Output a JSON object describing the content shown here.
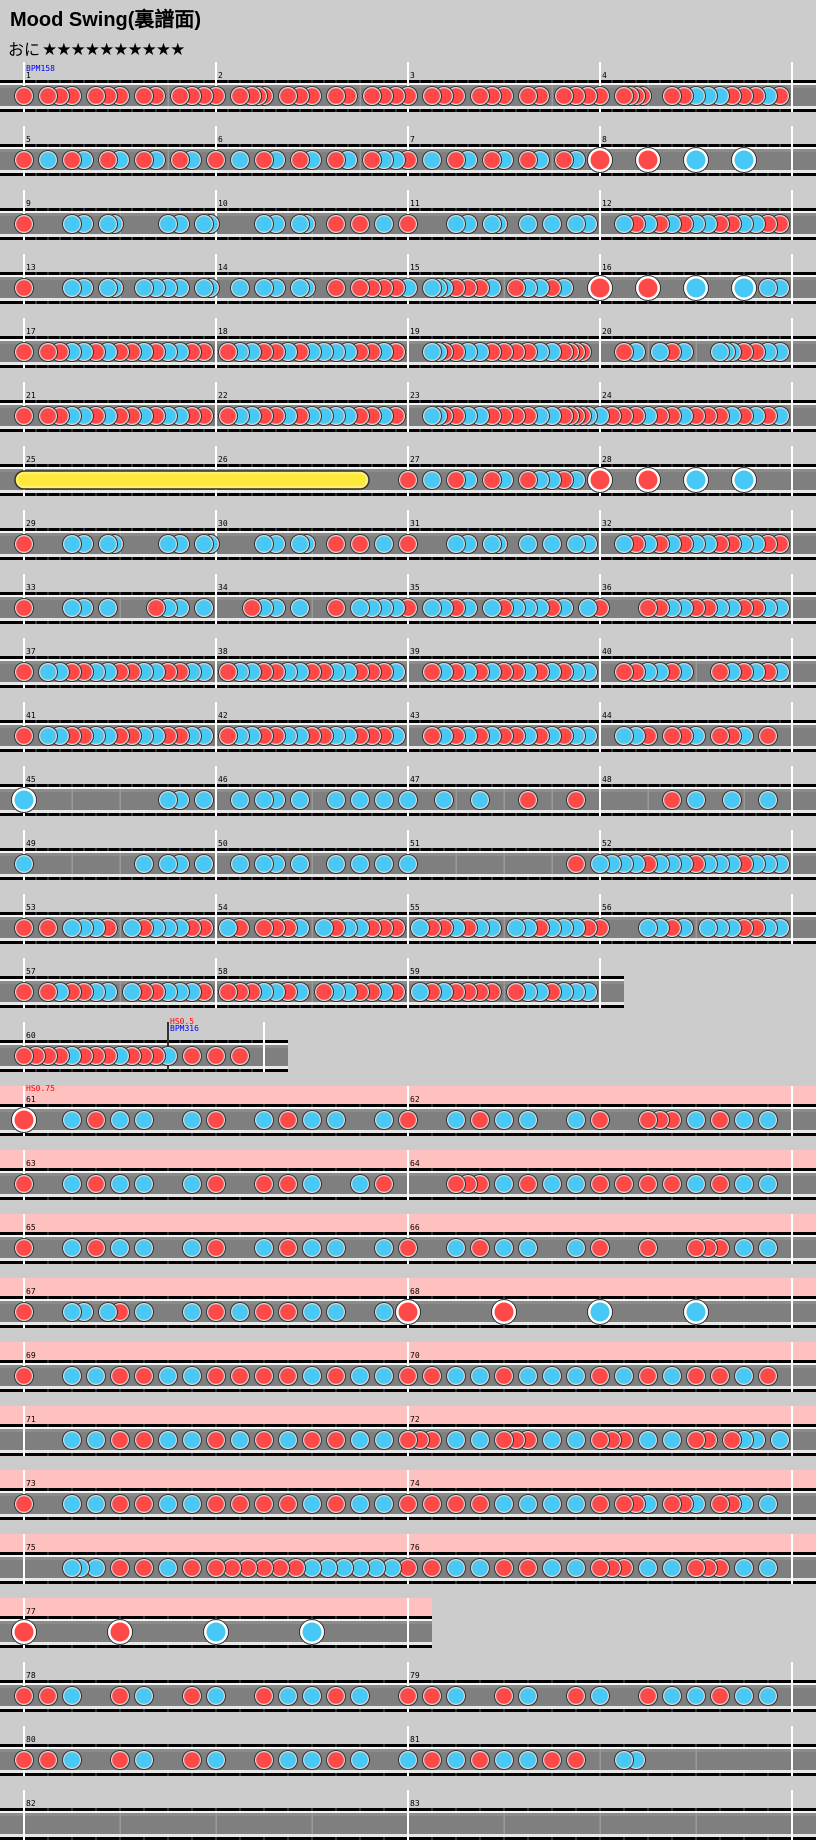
{
  "header": {
    "title": "Mood Swing(裏譜面)",
    "difficulty": "おに",
    "stars": 10,
    "stars_text": "★★★★★★★★★★"
  },
  "colors": {
    "background": "#cccccc",
    "lane": "#7f7f7f",
    "don": "#ff4848",
    "ka": "#48c8f4",
    "drumroll": "#ffe83c",
    "hs_band": "#ffc0c0",
    "bpm_label": "#0000ff",
    "hs_label": "#ff0000"
  },
  "note_legend": {
    "1": "don",
    "2": "ka",
    "3": "big-don",
    "4": "big-ka",
    "5": "drumroll-start",
    "8": "drumroll-end"
  },
  "hs_sections": [
    {
      "from": 61,
      "to": 77,
      "hs": 0.75
    }
  ],
  "events": [
    {
      "measure": 1,
      "sixteenth": 0,
      "bpm": "BPM158"
    },
    {
      "measure": 60,
      "sixteenth": 12,
      "hs": "HS0.5",
      "bpm": "BPM316",
      "marker": true
    },
    {
      "measure": 61,
      "sixteenth": 0,
      "hs": "HS0.75"
    }
  ],
  "rows": [
    [
      1,
      2,
      3,
      4
    ],
    [
      5,
      6,
      7,
      8
    ],
    [
      9,
      10,
      11,
      12
    ],
    [
      13,
      14,
      15,
      16
    ],
    [
      17,
      18,
      19,
      20
    ],
    [
      21,
      22,
      23,
      24
    ],
    [
      25,
      26,
      27,
      28
    ],
    [
      29,
      30,
      31,
      32
    ],
    [
      33,
      34,
      35,
      36
    ],
    [
      37,
      38,
      39,
      40
    ],
    [
      41,
      42,
      43,
      44
    ],
    [
      45,
      46,
      47,
      48
    ],
    [
      49,
      50,
      51,
      52
    ],
    [
      53,
      54,
      55,
      56
    ],
    [
      57,
      58,
      59
    ],
    [
      60
    ],
    [
      61,
      62
    ],
    [
      63,
      64
    ],
    [
      65,
      66
    ],
    [
      67,
      68
    ],
    [
      69,
      70
    ],
    [
      71,
      72
    ],
    [
      73,
      74
    ],
    [
      75,
      76
    ],
    [
      77
    ],
    [
      78,
      79
    ],
    [
      80,
      81
    ],
    [
      82,
      83
    ]
  ],
  "measures": [
    {
      "n": 1,
      "notes": "1011101110110111"
    },
    {
      "n": 2,
      "notes": "10001011100010101000101000101010"
    },
    {
      "n": 3,
      "notes": "1011101110110111"
    },
    {
      "n": 4,
      "notes": "10001111000010102020201010102010"
    },
    {
      "n": 5,
      "notes": "1020120120120120"
    },
    {
      "n": 6,
      "notes": "1020120120120122"
    },
    {
      "n": 7,
      "notes": "1020120120120120"
    },
    {
      "n": 8,
      "notes": "3000300040004000"
    },
    {
      "n": 9,
      "notes": "10000000202000220000000020200022"
    },
    {
      "n": 10,
      "notes": "00000000202000220000100010002000"
    },
    {
      "n": 11,
      "notes": "10000000202000220000200020002020"
    },
    {
      "n": 12,
      "notes": "0021212122112211"
    },
    {
      "n": 13,
      "notes": "10000000202000220000202020200022"
    },
    {
      "n": 14,
      "notes": "00002000202000220000100010101010"
    },
    {
      "n": 15,
      "notes": "20002220101010200010202010200000"
    },
    {
      "n": 16,
      "notes": "3000300040004022"
    },
    {
      "n": 17,
      "notes": "1011221211212211"
    },
    {
      "n": 18,
      "notes": "0122112122221121"
    },
    {
      "n": 19,
      "notes": "00002210102020101010102020111100"
    },
    {
      "n": 20,
      "notes": "00001020002010200000222010102020"
    },
    {
      "n": 21,
      "notes": "1011221211212211"
    },
    {
      "n": 22,
      "notes": "0122112122221121"
    },
    {
      "n": 23,
      "notes": "00002210102020101010102020111120"
    },
    {
      "n": 24,
      "notes": "2111211211121212"
    },
    {
      "n": 25,
      "notes": "5000000000000000"
    },
    {
      "n": 26,
      "notes": "0000000000008000"
    },
    {
      "n": 27,
      "notes": "1020120120122120"
    },
    {
      "n": 28,
      "notes": "3000300040004000"
    },
    {
      "n": 29,
      "notes": "10000000202000220000000020200022"
    },
    {
      "n": 30,
      "notes": "00000000202000220000100010002000"
    },
    {
      "n": 31,
      "notes": "10000000202000220000200020002020"
    },
    {
      "n": 32,
      "notes": "0021212122112211"
    },
    {
      "n": 33,
      "notes": "1000220200012202"
    },
    {
      "n": 34,
      "notes": "0001220200102222"
    },
    {
      "n": 35,
      "notes": "1022120212221202"
    },
    {
      "n": 36,
      "notes": "1000112211221122"
    },
    {
      "n": 37,
      "notes": "1022112211221122"
    },
    {
      "n": 38,
      "notes": "0122112211221112"
    },
    {
      "n": 39,
      "notes": "0012121211212122"
    },
    {
      "n": 40,
      "notes": "0011221200121212"
    },
    {
      "n": 41,
      "notes": "1022112211221122"
    },
    {
      "n": 42,
      "notes": "0122112211221112"
    },
    {
      "n": 43,
      "notes": "0012121211212122"
    },
    {
      "n": 44,
      "notes": "0022101120112010"
    },
    {
      "n": 45,
      "notes": "4000000000002202"
    },
    {
      "n": 46,
      "notes": "0020220200202020"
    },
    {
      "n": 47,
      "notes": "2002002000100010"
    },
    {
      "n": 48,
      "notes": "0000001020020020"
    },
    {
      "n": 49,
      "notes": "2000000000202202"
    },
    {
      "n": 50,
      "notes": "0020220200202020"
    },
    {
      "n": 51,
      "notes": "2000000000000010"
    },
    {
      "n": 52,
      "notes": "2222122212221222"
    },
    {
      "n": 53,
      "notes": "1010222102122211"
    },
    {
      "n": 54,
      "notes": "0210111202122111"
    },
    {
      "n": 55,
      "notes": "0211212202212221"
    },
    {
      "n": 56,
      "notes": "1000221202221122"
    },
    {
      "n": 57,
      "notes": "1012112202112221"
    },
    {
      "n": 58,
      "notes": "0111221201221121"
    },
    {
      "n": 59,
      "notes": "0212111101221222"
    },
    {
      "n": 60,
      "notes": "11112111211120101010",
      "beats": 5
    },
    {
      "n": 61,
      "notes": "3021220210212202"
    },
    {
      "n": 62,
      "notes": "10002010202000201000111020102020"
    },
    {
      "n": 63,
      "notes": "1021220210112021"
    },
    {
      "n": 64,
      "notes": "00001110201020201010101020102020"
    },
    {
      "n": 65,
      "notes": "1021220210212202"
    },
    {
      "n": 66,
      "notes": "10002010202000201000100011102020"
    },
    {
      "n": 67,
      "notes": "10002202102000201020101020200020"
    },
    {
      "n": 68,
      "notes": "3000300040004000"
    },
    {
      "n": 69,
      "notes": "1022112211112122"
    },
    {
      "n": 70,
      "notes": "1122122212121121"
    },
    {
      "n": 71,
      "notes": "0022112212121122"
    },
    {
      "n": 72,
      "notes": "11102020111020201110202011012202"
    },
    {
      "n": 73,
      "notes": "1022112211112122"
    },
    {
      "n": 74,
      "notes": "10101010202020201011201120112020"
    },
    {
      "n": 75,
      "notes": "000000220200100100200100101010101010202020202020"
    },
    {
      "n": 76,
      "notes": "10102020101020201110202011102020"
    },
    {
      "n": 77,
      "notes": "3000300040004000"
    },
    {
      "n": 78,
      "notes": "1120120120122120"
    },
    {
      "n": 79,
      "notes": "1120120120122122"
    },
    {
      "n": 80,
      "notes": "1120120120122120"
    },
    {
      "n": 81,
      "notes": "20102010202010100022000000000000"
    },
    {
      "n": 82,
      "notes": "0"
    },
    {
      "n": 83,
      "notes": "0"
    }
  ]
}
